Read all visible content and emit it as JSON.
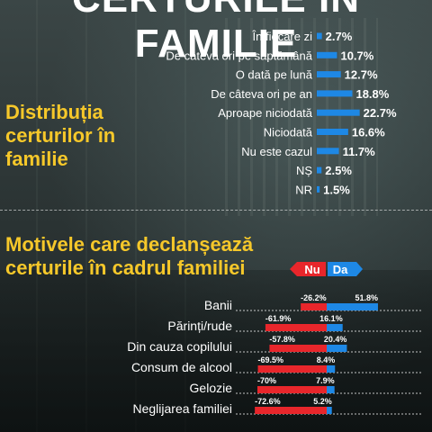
{
  "headline": "CERTURILE ÎN FAMILIE",
  "section1": {
    "title_lines": [
      "Distribuția",
      "certurilor în",
      "familie"
    ]
  },
  "section2": {
    "title_lines": [
      "Motivele care declanșează",
      "certurile în cadrul familiei"
    ]
  },
  "colors": {
    "bar_blue": "#1e88e5",
    "nu_red": "#e8262b",
    "title_yellow": "#f6c82a",
    "text_white": "#ffffff"
  },
  "chart_data": [
    {
      "type": "bar",
      "orientation": "horizontal",
      "categories": [
        "În fiecare zi",
        "De câteva ori pe săptămână",
        "O dată pe lună",
        "De câteva ori pe an",
        "Aproape niciodată",
        "Niciodată",
        "Nu este cazul",
        "NȘ",
        "NR"
      ],
      "values": [
        2.7,
        10.7,
        12.7,
        18.8,
        22.7,
        16.6,
        11.7,
        2.5,
        1.5
      ],
      "value_labels": [
        "2.7%",
        "10.7%",
        "12.7%",
        "18.8%",
        "22.7%",
        "16.6%",
        "11.7%",
        "2.5%",
        "1.5%"
      ]
    },
    {
      "type": "bar",
      "orientation": "horizontal",
      "diverging": true,
      "legend": [
        "Nu",
        "Da"
      ],
      "categories": [
        "Banii",
        "Părinți/rude",
        "Din cauza copilului",
        "Consum de alcool",
        "Gelozie",
        "Neglijarea familiei"
      ],
      "series": [
        {
          "name": "Nu",
          "values": [
            -26.2,
            -61.9,
            -57.8,
            -69.5,
            -70,
            -72.6
          ],
          "labels": [
            "-26.2%",
            "-61.9%",
            "-57.8%",
            "-69.5%",
            "-70%",
            "-72.6%"
          ]
        },
        {
          "name": "Da",
          "values": [
            51.8,
            16.1,
            20.4,
            8.4,
            7.9,
            5.2
          ],
          "labels": [
            "51.8%",
            "16.1%",
            "20.4%",
            "8.4%",
            "7.9%",
            "5.2%"
          ]
        }
      ]
    }
  ]
}
